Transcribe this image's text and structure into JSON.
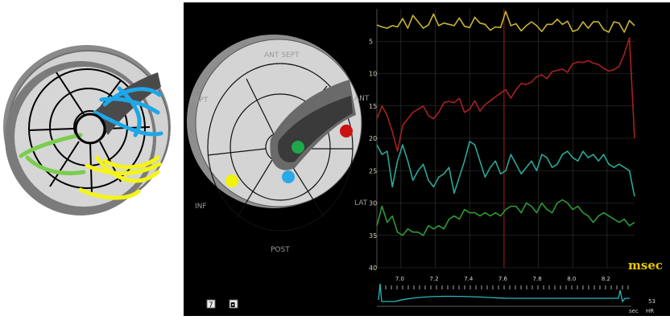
{
  "bullseye": {
    "labels": {
      "ant_sept": "ANT SEPT",
      "ant": "ANT",
      "sept": "SEPT",
      "lat": "LAT",
      "inf": "INF",
      "post": "POST"
    },
    "markers": [
      {
        "name": "red-marker",
        "color": "#cc1111"
      },
      {
        "name": "green-marker",
        "color": "#1fa84a"
      },
      {
        "name": "blue-marker",
        "color": "#2aa8e8"
      },
      {
        "name": "yellow-marker",
        "color": "#f2f20a"
      }
    ]
  },
  "left_diagram": {
    "fiber_colors": [
      "#1ea7e8",
      "#7ccc4e",
      "#f4f418"
    ]
  },
  "chart_data": {
    "type": "line",
    "unit_label": "msec",
    "y_ticks": [
      "5",
      "10",
      "15",
      "20",
      "25",
      "30",
      "35",
      "40"
    ],
    "ylim": [
      0,
      40
    ],
    "x_ticks": [
      "7.0",
      "7.2",
      "7.4",
      "7.6",
      "7.8",
      "8.0",
      "8.2"
    ],
    "xlim": [
      6.86,
      8.36
    ],
    "cursor_x": 7.6,
    "grid": true,
    "series": [
      {
        "color": "#c8b436",
        "values": [
          2.5,
          2.8,
          3.0,
          2.6,
          2.8,
          1.5,
          3.0,
          1.0,
          2.0,
          3.0,
          2.5,
          0.8,
          2.6,
          2.2,
          2.4,
          2.6,
          1.4,
          2.7,
          2.9,
          1.3,
          2.2,
          2.4,
          3.3,
          2.8,
          2.9,
          0.4,
          2.6,
          2.3,
          3.4,
          2.6,
          2.0,
          2.6,
          3.5,
          2.4,
          2.4,
          1.6,
          2.4,
          1.9,
          3.5,
          3.2,
          2.0,
          3.0,
          2.0,
          2.0,
          3.2,
          3.6,
          2.0,
          2.2,
          3.6,
          1.8,
          2.6
        ]
      },
      {
        "color": "#a82020",
        "values": [
          17.0,
          15.0,
          16.5,
          19.0,
          22.0,
          18.0,
          17.0,
          16.0,
          15.5,
          15.0,
          16.5,
          17.0,
          16.0,
          14.5,
          14.3,
          14.5,
          13.8,
          16.0,
          15.5,
          14.2,
          15.8,
          14.8,
          14.2,
          13.6,
          13.0,
          12.5,
          13.8,
          12.5,
          11.5,
          11.7,
          11.3,
          10.5,
          10.2,
          10.8,
          9.7,
          9.5,
          9.3,
          9.8,
          8.5,
          8.2,
          8.3,
          8.0,
          8.4,
          8.6,
          9.2,
          9.6,
          9.4,
          8.9,
          7.0,
          4.5,
          20.0
        ]
      },
      {
        "color": "#2aa898",
        "values": [
          21.0,
          22.5,
          22.0,
          27.5,
          23.5,
          21.0,
          23.5,
          26.5,
          25.0,
          24.0,
          26.5,
          27.5,
          26.0,
          25.5,
          24.5,
          28.5,
          26.0,
          23.5,
          20.5,
          21.0,
          23.5,
          26.0,
          24.5,
          23.5,
          25.5,
          25.0,
          22.5,
          24.0,
          25.5,
          24.5,
          23.5,
          25.0,
          22.5,
          23.0,
          24.5,
          24.0,
          22.5,
          22.0,
          23.0,
          23.5,
          22.0,
          23.0,
          22.5,
          23.5,
          22.5,
          24.0,
          24.5,
          24.0,
          24.5,
          25.0,
          29.0
        ]
      },
      {
        "color": "#2e9a34",
        "values": [
          33.5,
          30.5,
          33.0,
          32.0,
          34.5,
          35.0,
          34.0,
          34.5,
          34.5,
          35.0,
          33.5,
          34.0,
          33.5,
          34.0,
          32.5,
          32.0,
          32.5,
          31.0,
          31.5,
          31.5,
          32.0,
          31.5,
          32.0,
          31.5,
          32.0,
          31.0,
          30.5,
          30.5,
          31.5,
          30.0,
          30.5,
          31.5,
          30.0,
          31.0,
          31.5,
          30.0,
          29.5,
          30.0,
          31.0,
          30.5,
          31.5,
          32.0,
          33.0,
          32.0,
          31.5,
          32.0,
          32.5,
          33.0,
          32.5,
          33.5,
          33.0
        ]
      }
    ]
  },
  "footer": {
    "btn_a": "7",
    "btn_b": "◘",
    "hr_value": "53",
    "hr_left": "sec",
    "hr_right": "HR"
  }
}
